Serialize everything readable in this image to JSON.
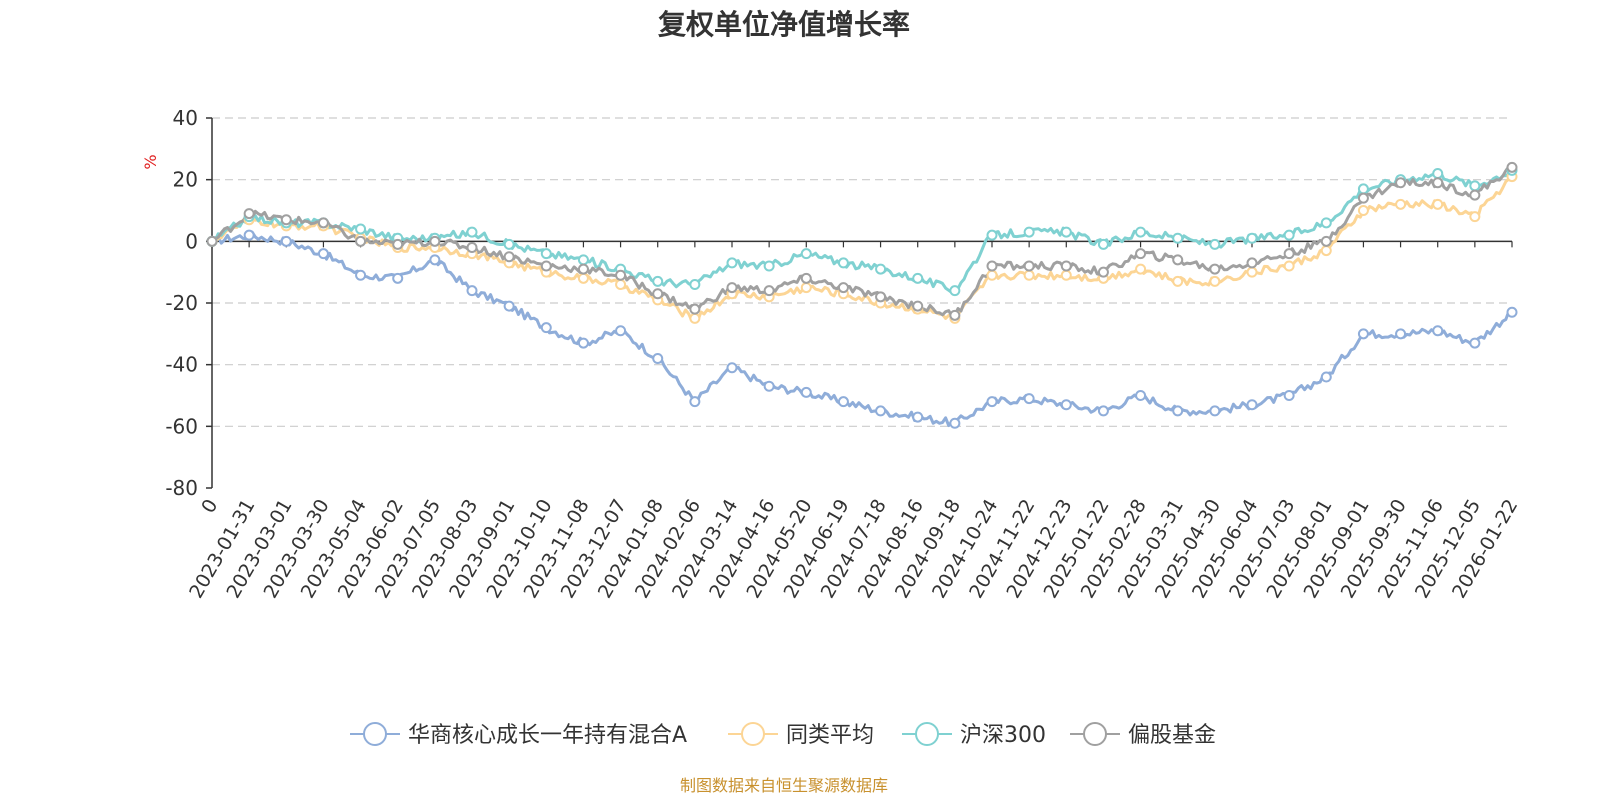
{
  "chart_data": {
    "type": "line",
    "title": "复权单位净值增长率",
    "ylabel": "%",
    "xlabel": "",
    "ylim": [
      -80,
      40
    ],
    "yticks": [
      40,
      20,
      0,
      -20,
      -40,
      -60,
      -80
    ],
    "grid": true,
    "legend_position": "bottom",
    "source": "制图数据来自恒生聚源数据库",
    "categories": [
      "0",
      "2023-01-31",
      "2023-03-01",
      "2023-03-30",
      "2023-05-04",
      "2023-06-02",
      "2023-07-05",
      "2023-08-03",
      "2023-09-01",
      "2023-10-10",
      "2023-11-08",
      "2023-12-07",
      "2024-01-08",
      "2024-02-06",
      "2024-03-14",
      "2024-04-16",
      "2024-05-20",
      "2024-06-19",
      "2024-07-18",
      "2024-08-16",
      "2024-09-18",
      "2024-10-24",
      "2024-11-22",
      "2024-12-23",
      "2025-01-22",
      "2025-02-28",
      "2025-03-31",
      "2025-04-30",
      "2025-06-04",
      "2025-07-03",
      "2025-08-01",
      "2025-09-01",
      "2025-09-30",
      "2025-11-06",
      "2025-12-05",
      "2026-01-22"
    ],
    "series": [
      {
        "name": "华商核心成长一年持有混合A",
        "color": "#8fadd9",
        "values": [
          0,
          2,
          0,
          -4,
          -11,
          -12,
          -6,
          -16,
          -21,
          -28,
          -33,
          -29,
          -38,
          -52,
          -41,
          -47,
          -49,
          -52,
          -55,
          -57,
          -59,
          -52,
          -51,
          -53,
          -55,
          -50,
          -55,
          -55,
          -53,
          -50,
          -44,
          -30,
          -30,
          -29,
          -33,
          -23
        ]
      },
      {
        "name": "同类平均",
        "color": "#fcd595",
        "values": [
          0,
          7,
          5,
          5,
          1,
          -2,
          -2,
          -4,
          -7,
          -10,
          -12,
          -14,
          -19,
          -25,
          -17,
          -18,
          -15,
          -17,
          -20,
          -22,
          -25,
          -11,
          -11,
          -11,
          -12,
          -9,
          -13,
          -13,
          -10,
          -8,
          -3,
          10,
          12,
          12,
          8,
          21
        ]
      },
      {
        "name": "沪深300",
        "color": "#7fd1d1",
        "values": [
          0,
          8,
          6,
          6,
          4,
          1,
          1,
          3,
          -1,
          -4,
          -6,
          -9,
          -13,
          -14,
          -7,
          -8,
          -4,
          -7,
          -9,
          -12,
          -16,
          2,
          3,
          3,
          -1,
          3,
          1,
          -1,
          1,
          2,
          6,
          17,
          20,
          22,
          18,
          23
        ]
      },
      {
        "name": "偏股基金",
        "color": "#a0a0a0",
        "values": [
          0,
          9,
          7,
          6,
          0,
          -1,
          0,
          -2,
          -5,
          -8,
          -9,
          -11,
          -17,
          -22,
          -15,
          -16,
          -12,
          -15,
          -18,
          -21,
          -24,
          -8,
          -8,
          -8,
          -10,
          -4,
          -6,
          -9,
          -7,
          -4,
          0,
          14,
          19,
          19,
          15,
          24
        ]
      }
    ]
  }
}
